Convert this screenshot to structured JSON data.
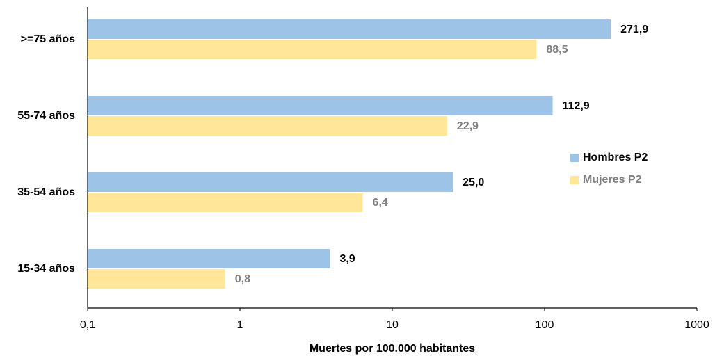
{
  "chart_data": {
    "type": "hbar",
    "x_label": "Muertes por 100.000 habitantes",
    "categories": [
      ">=75 años",
      "55-74 años",
      "35-54 años",
      "15-34 años"
    ],
    "series": [
      {
        "name": "Hombres P2",
        "color": "#9dc3e6",
        "label_color": "#000000",
        "values": [
          271.9,
          112.9,
          25.0,
          3.9
        ],
        "value_labels": [
          "271,9",
          "112,9",
          "25,0",
          "3,9"
        ]
      },
      {
        "name": "Mujeres P2",
        "color": "#ffe699",
        "label_color": "#7f7f7f",
        "values": [
          88.5,
          22.9,
          6.4,
          0.8
        ],
        "value_labels": [
          "88,5",
          "22,9",
          "6,4",
          "0,8"
        ]
      }
    ],
    "xscale": "log",
    "xlim": [
      0.1,
      1000
    ],
    "xticks": [
      {
        "value": 0.1,
        "label": "0,1"
      },
      1,
      10,
      100,
      1000
    ],
    "legend": "right"
  }
}
